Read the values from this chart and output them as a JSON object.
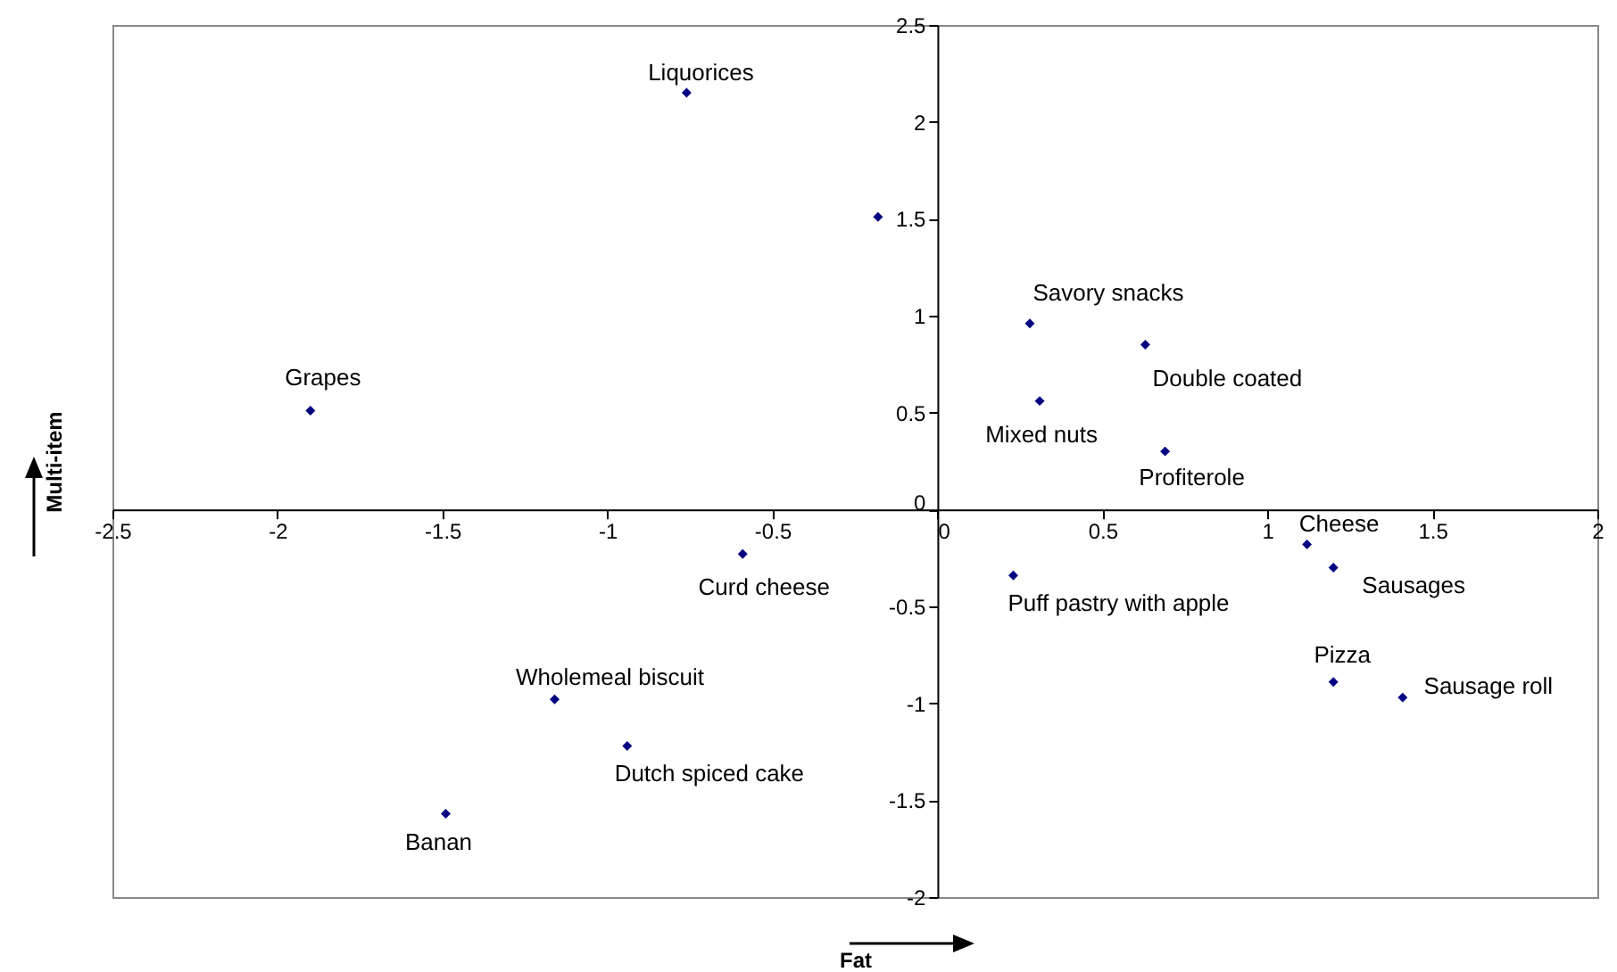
{
  "chart_data": {
    "type": "scatter",
    "xlabel": "Fat",
    "ylabel": "Multi-item",
    "x": [
      -0.76,
      -0.18,
      0.28,
      0.63,
      0.31,
      0.69,
      -1.9,
      -0.59,
      0.23,
      1.12,
      1.2,
      1.2,
      1.41,
      -1.16,
      -0.94,
      -1.49
    ],
    "values": [
      2.15,
      1.51,
      0.96,
      0.85,
      0.56,
      0.3,
      0.51,
      -0.23,
      -0.34,
      -0.18,
      -0.3,
      -0.89,
      -0.97,
      -0.98,
      -1.22,
      -1.57
    ],
    "value_labels": [
      "Liquorices",
      null,
      "Savory snacks",
      "Double coated",
      "Mixed nuts",
      "Profiterole",
      "Grapes",
      "Curd cheese",
      "Puff pastry with apple",
      "Cheese",
      "Sausages",
      "Pizza",
      "Sausage roll",
      "Wholemeal biscuit",
      "Dutch spiced cake",
      "Banan"
    ],
    "color": "#000080",
    "marker": "diamond",
    "xlim": [
      -2.5,
      2
    ],
    "xticks": [
      -2.5,
      -2,
      -1.5,
      -1,
      -0.5,
      0,
      0.5,
      1,
      1.5,
      2
    ],
    "ylim": [
      -2,
      2.5
    ],
    "yticks": [
      -2,
      -1.5,
      -1,
      -0.5,
      0,
      0.5,
      1,
      1.5,
      2,
      2.5
    ]
  }
}
